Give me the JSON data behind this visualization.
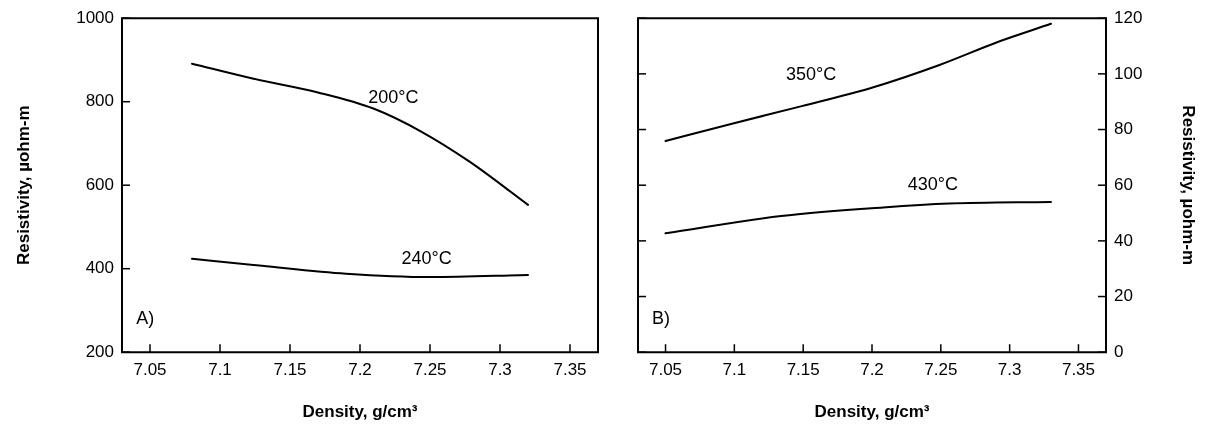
{
  "chart_data": [
    {
      "type": "line",
      "xlabel": "Density, g/cm³",
      "ylabel": "Resistivity, µohm-m",
      "xlim": [
        7.03,
        7.37
      ],
      "xticks": [
        7.05,
        7.1,
        7.15,
        7.2,
        7.25,
        7.3,
        7.35
      ],
      "ylim": [
        200,
        1000
      ],
      "yticks": [
        200,
        400,
        600,
        800,
        1000
      ],
      "grid": false,
      "legend": false,
      "marker": "none",
      "line_style": "solid",
      "series": [
        {
          "color": "#000000",
          "x": [
            7.08,
            7.124,
            7.17,
            7.21,
            7.244,
            7.278,
            7.32
          ],
          "values": [
            891,
            855,
            822,
            783,
            728,
            657,
            553
          ]
        },
        {
          "color": "#000000",
          "x": [
            7.08,
            7.13,
            7.19,
            7.25,
            7.32
          ],
          "values": [
            424,
            407,
            388,
            380,
            385
          ]
        }
      ],
      "annotations": [
        "200°C",
        "240°C",
        "A)"
      ]
    },
    {
      "type": "line",
      "xlabel": "Density, g/cm³",
      "y2label": "Resistivity, µohm-m",
      "xlim": [
        7.03,
        7.37
      ],
      "xticks": [
        7.05,
        7.1,
        7.15,
        7.2,
        7.25,
        7.3,
        7.35
      ],
      "y2lim": [
        0,
        120
      ],
      "y2ticks": [
        0,
        20,
        40,
        60,
        80,
        100,
        120
      ],
      "grid": false,
      "legend": false,
      "marker": "none",
      "line_style": "solid",
      "series": [
        {
          "color": "#000000",
          "axis": "y2",
          "x": [
            7.05,
            7.099,
            7.149,
            7.201,
            7.249,
            7.29,
            7.33
          ],
          "values": [
            75.9,
            82.2,
            88.4,
            95.2,
            103.2,
            111.2,
            118
          ]
        },
        {
          "color": "#000000",
          "axis": "y2",
          "x": [
            7.05,
            7.134,
            7.208,
            7.256,
            7.33
          ],
          "values": [
            42.7,
            48.9,
            52,
            53.4,
            54
          ]
        }
      ],
      "annotations": [
        "350°C",
        "430°C",
        "B)"
      ]
    }
  ]
}
